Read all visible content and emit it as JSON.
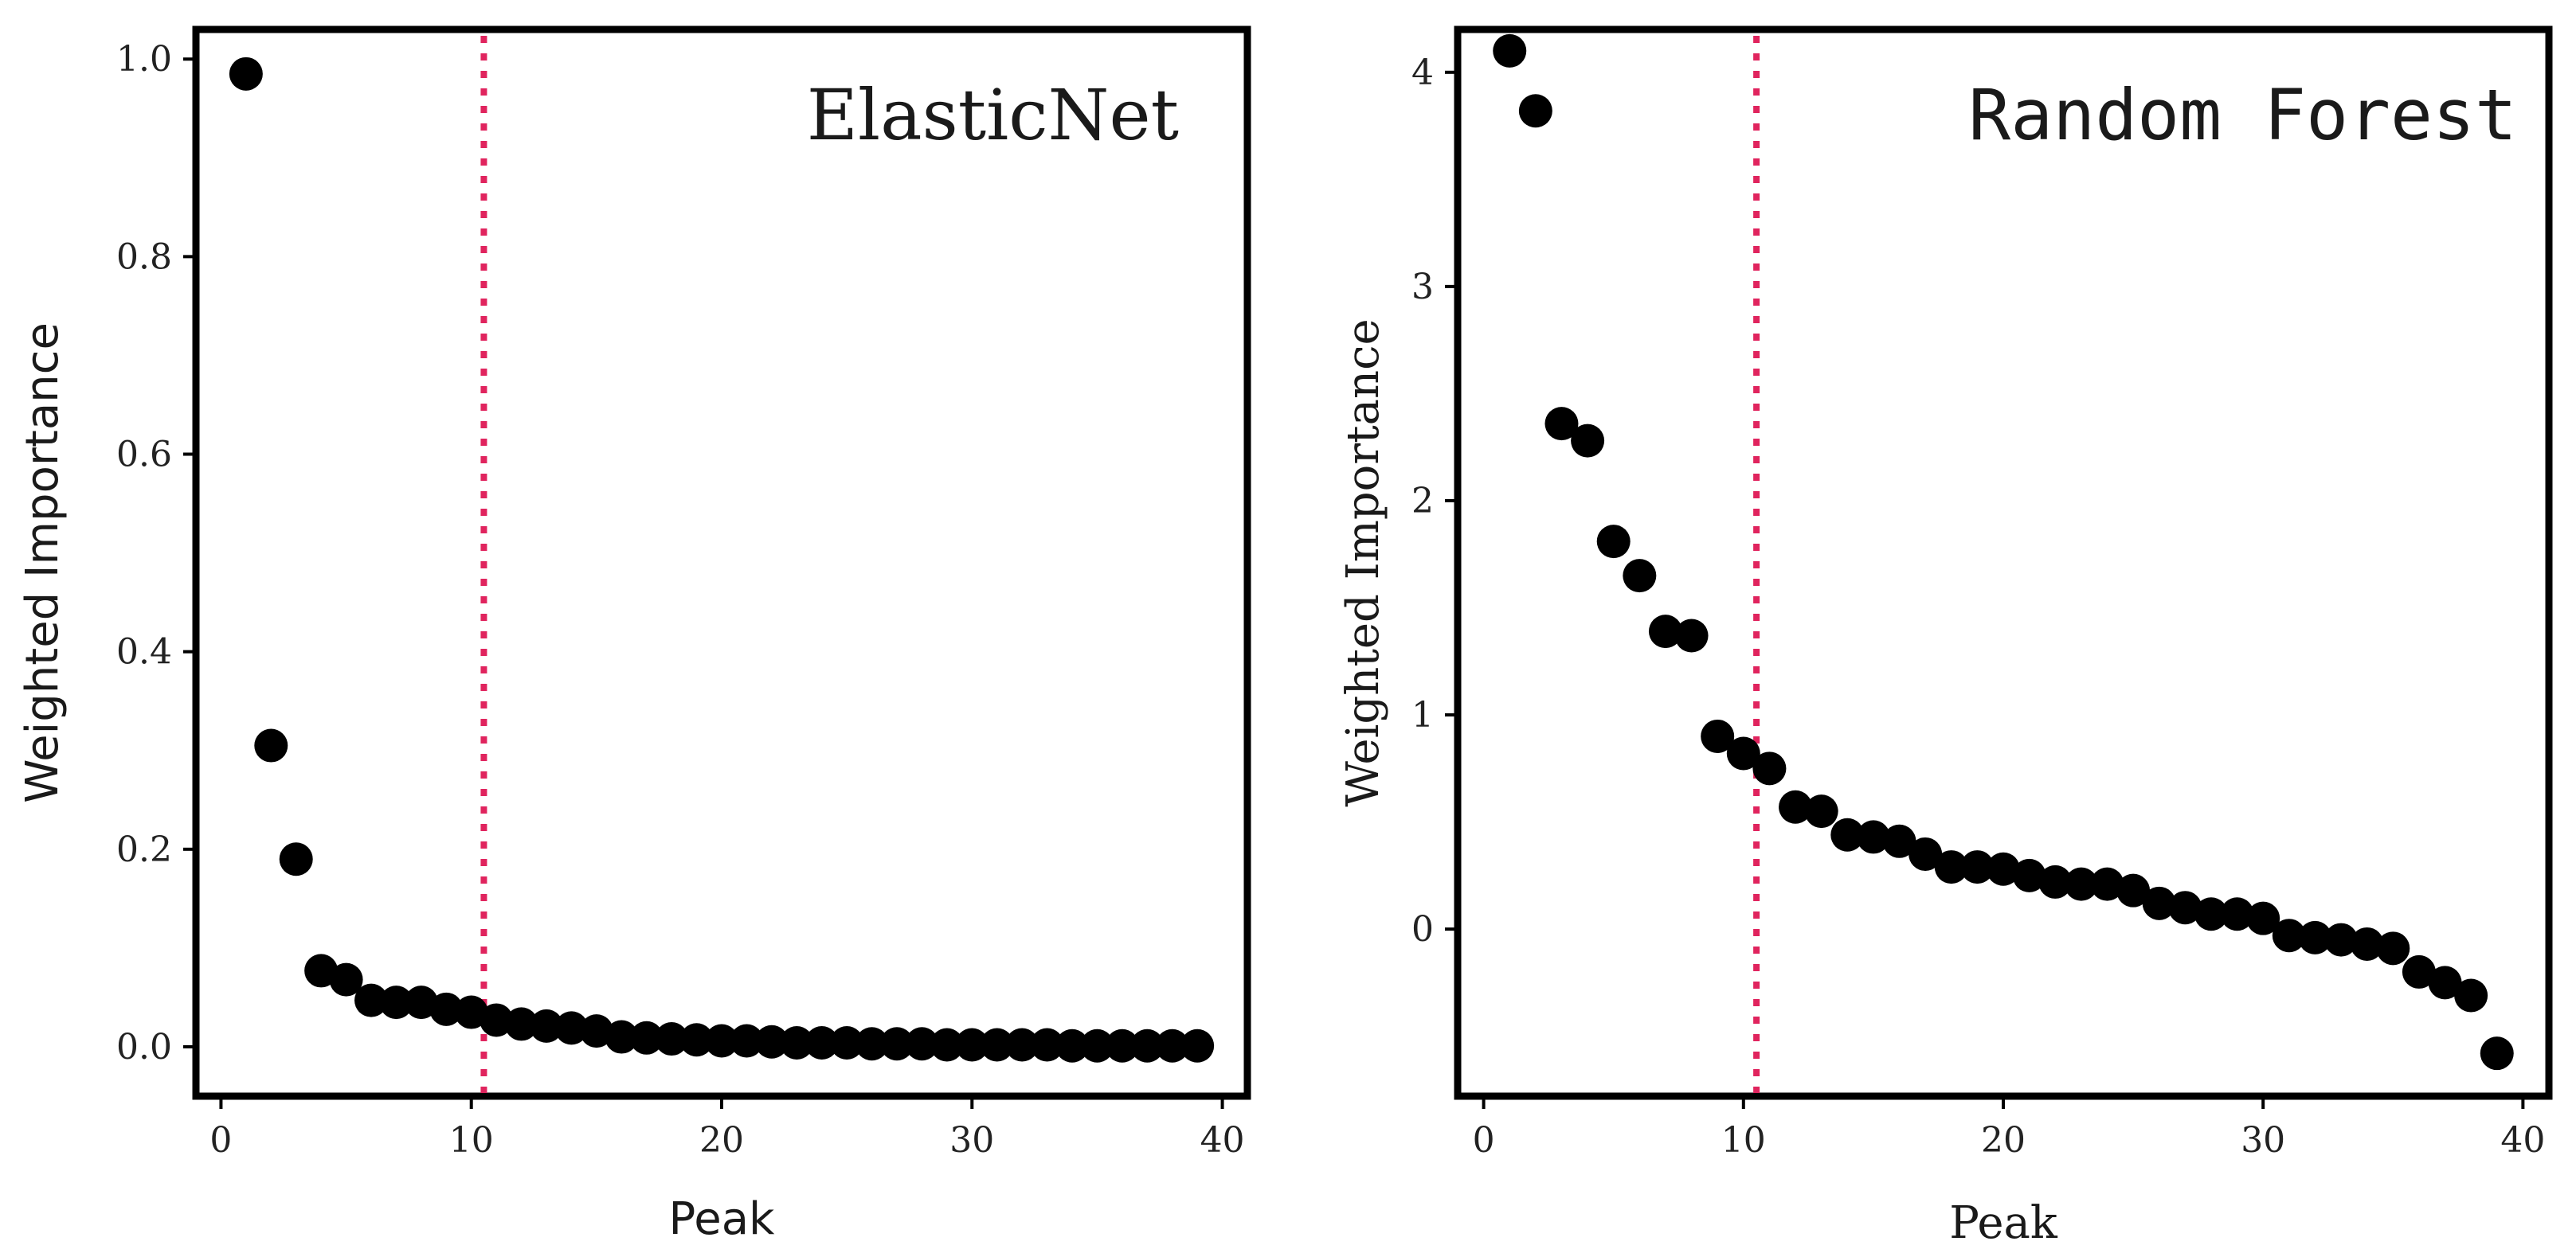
{
  "chart_data": [
    {
      "type": "scatter",
      "title": "ElasticNet",
      "xlabel": "Peak",
      "ylabel": "Weighted Importance",
      "xlim": [
        -1,
        41
      ],
      "ylim": [
        -0.05,
        1.03
      ],
      "xticks": [
        0,
        10,
        20,
        30,
        40
      ],
      "yticks": [
        0.0,
        0.2,
        0.4,
        0.6,
        0.8,
        1.0
      ],
      "ytick_labels": [
        "0.0",
        "0.2",
        "0.4",
        "0.6",
        "0.8",
        "1.0"
      ],
      "vline": 10.5,
      "vline_color": "#e0245e",
      "marker_color": "#000000",
      "grid": false,
      "x": [
        1,
        2,
        3,
        4,
        5,
        6,
        7,
        8,
        9,
        10,
        11,
        12,
        13,
        14,
        15,
        16,
        17,
        18,
        19,
        20,
        21,
        22,
        23,
        24,
        25,
        26,
        27,
        28,
        29,
        30,
        31,
        32,
        33,
        34,
        35,
        36,
        37,
        38,
        39
      ],
      "values": [
        0.985,
        0.305,
        0.19,
        0.077,
        0.068,
        0.047,
        0.045,
        0.045,
        0.038,
        0.035,
        0.027,
        0.023,
        0.021,
        0.019,
        0.016,
        0.01,
        0.009,
        0.008,
        0.007,
        0.006,
        0.006,
        0.005,
        0.004,
        0.004,
        0.004,
        0.003,
        0.003,
        0.003,
        0.002,
        0.002,
        0.002,
        0.002,
        0.002,
        0.001,
        0.001,
        0.001,
        0.001,
        0.001,
        0.001
      ]
    },
    {
      "type": "scatter",
      "title": "Random Forest",
      "xlabel": "Peak",
      "ylabel": "Weighted Importance",
      "xlim": [
        -1,
        41
      ],
      "ylim": [
        -0.78,
        4.2
      ],
      "xticks": [
        0,
        10,
        20,
        30,
        40
      ],
      "yticks": [
        0,
        1,
        2,
        3,
        4
      ],
      "ytick_labels": [
        "0",
        "1",
        "2",
        "3",
        "4"
      ],
      "vline": 10.5,
      "vline_color": "#e0245e",
      "marker_color": "#000000",
      "grid": false,
      "x": [
        1,
        2,
        3,
        4,
        5,
        6,
        7,
        8,
        9,
        10,
        11,
        12,
        13,
        14,
        15,
        16,
        17,
        18,
        19,
        20,
        21,
        22,
        23,
        24,
        25,
        26,
        27,
        28,
        29,
        30,
        31,
        32,
        33,
        34,
        35,
        36,
        37,
        38,
        39
      ],
      "values": [
        4.1,
        3.82,
        2.36,
        2.28,
        1.81,
        1.65,
        1.39,
        1.37,
        0.9,
        0.82,
        0.75,
        0.57,
        0.55,
        0.44,
        0.43,
        0.41,
        0.35,
        0.29,
        0.29,
        0.28,
        0.25,
        0.22,
        0.21,
        0.21,
        0.18,
        0.12,
        0.1,
        0.07,
        0.07,
        0.05,
        -0.03,
        -0.04,
        -0.05,
        -0.07,
        -0.09,
        -0.2,
        -0.25,
        -0.31,
        -0.58
      ]
    }
  ]
}
